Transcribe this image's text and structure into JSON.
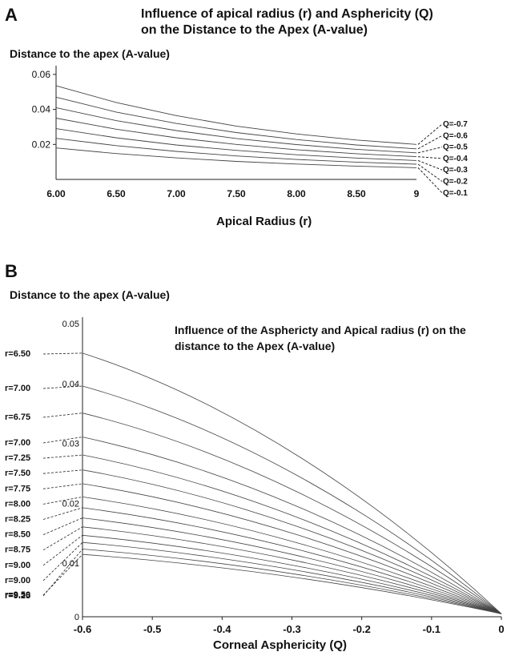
{
  "chart_data": [
    {
      "panel": "A",
      "type": "line",
      "title": "Influence of apical radius (r) and Asphericity (Q)",
      "title_line2": "on the Distance to the Apex (A-value)",
      "ylabel": "Distance to the apex (A-value)",
      "xlabel": "Apical Radius (r)",
      "x_ticks": [
        "6.00",
        "6.50",
        "7.00",
        "7.50",
        "8.00",
        "8.50",
        "9"
      ],
      "y_ticks": [
        "0.02",
        "0.04",
        "0.06"
      ],
      "xlim": [
        6.0,
        9.0
      ],
      "ylim": [
        0,
        0.065
      ],
      "x": [
        6.0,
        6.5,
        7.0,
        7.5,
        8.0,
        8.5,
        9.0
      ],
      "series": [
        {
          "name": "Q=-0.7",
          "values": [
            0.0535,
            0.044,
            0.0365,
            0.0305,
            0.026,
            0.0225,
            0.02
          ]
        },
        {
          "name": "Q=-0.6",
          "values": [
            0.047,
            0.0385,
            0.032,
            0.0268,
            0.0228,
            0.0197,
            0.0175
          ]
        },
        {
          "name": "Q=-0.5",
          "values": [
            0.041,
            0.0336,
            0.0279,
            0.0234,
            0.0199,
            0.0172,
            0.0152
          ]
        },
        {
          "name": "Q=-0.4",
          "values": [
            0.035,
            0.0287,
            0.0238,
            0.02,
            0.017,
            0.0147,
            0.013
          ]
        },
        {
          "name": "Q=-0.3",
          "values": [
            0.029,
            0.0238,
            0.0197,
            0.0166,
            0.0141,
            0.0122,
            0.0108
          ]
        },
        {
          "name": "Q=-0.2",
          "values": [
            0.0235,
            0.0193,
            0.016,
            0.0134,
            0.0114,
            0.0099,
            0.0087
          ]
        },
        {
          "name": "Q=-0.1",
          "values": [
            0.018,
            0.0148,
            0.0123,
            0.0103,
            0.0088,
            0.0076,
            0.0067
          ]
        }
      ]
    },
    {
      "panel": "B",
      "type": "line",
      "title": "Influence of the Asphericty and Apical radius (r) on the",
      "title_line2": "distance to the Apex (A-value)",
      "ylabel": "Distance to the apex (A-value)",
      "xlabel": "Corneal Asphericity (Q)",
      "x_ticks": [
        "-0.6",
        "-0.5",
        "-0.4",
        "-0.3",
        "-0.2",
        "-0.1",
        "0"
      ],
      "y_ticks": [
        "0",
        "0.01",
        "0.02",
        "0.03",
        "0.04",
        "0.05"
      ],
      "xlim": [
        -0.6,
        0
      ],
      "ylim": [
        0,
        0.05
      ],
      "start_x": -0.6,
      "end_point": [
        0,
        0.0005
      ],
      "series": [
        {
          "name": "r=6.50",
          "value_at_q_min": 0.044
        },
        {
          "name": "r=7.00",
          "value_at_q_min": 0.0385
        },
        {
          "name": "r=6.75",
          "value_at_q_min": 0.034
        },
        {
          "name": "r=7.00",
          "value_at_q_min": 0.03
        },
        {
          "name": "r=7.25",
          "value_at_q_min": 0.027
        },
        {
          "name": "r=7.50",
          "value_at_q_min": 0.0245
        },
        {
          "name": "r=7.75",
          "value_at_q_min": 0.0222
        },
        {
          "name": "r=8.00",
          "value_at_q_min": 0.02
        },
        {
          "name": "r=8.25",
          "value_at_q_min": 0.0182
        },
        {
          "name": "r=8.50",
          "value_at_q_min": 0.0165
        },
        {
          "name": "r=8.75",
          "value_at_q_min": 0.015
        },
        {
          "name": "r=9.00",
          "value_at_q_min": 0.0136
        },
        {
          "name": "r=9.00",
          "value_at_q_min": 0.0124
        },
        {
          "name": "r=9.25",
          "value_at_q_min": 0.0113
        },
        {
          "name": "r=9.50",
          "value_at_q_min": 0.0104
        }
      ]
    }
  ],
  "panels": {
    "a": "A",
    "b": "B"
  }
}
